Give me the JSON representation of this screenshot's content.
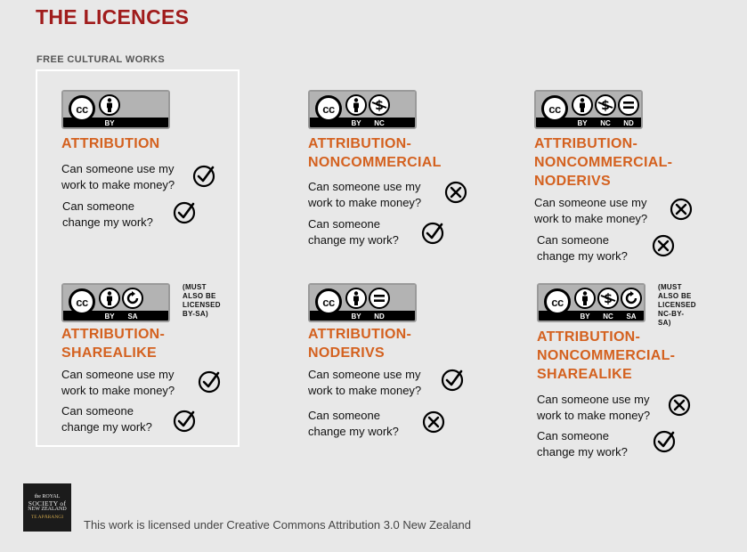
{
  "title": "THE LICENCES",
  "section_label": "FREE CULTURAL WORKS",
  "licences": [
    {
      "name_lines": [
        "ATTRIBUTION"
      ],
      "badge_labels": [
        "BY"
      ],
      "badge_icons": [
        "person-icon"
      ],
      "q1": [
        "Can someone use my",
        "work to make money?"
      ],
      "a1": "yes",
      "q2": [
        "Can someone",
        "change my work?"
      ],
      "a2": "yes",
      "note": []
    },
    {
      "name_lines": [
        "ATTRIBUTION-",
        "NONCOMMERCIAL"
      ],
      "badge_labels": [
        "BY",
        "NC"
      ],
      "badge_icons": [
        "person-icon",
        "no-dollar-icon"
      ],
      "q1": [
        "Can someone use my",
        "work to make money?"
      ],
      "a1": "no",
      "q2": [
        "Can someone",
        "change my work?"
      ],
      "a2": "yes",
      "note": []
    },
    {
      "name_lines": [
        "ATTRIBUTION-",
        "NONCOMMERCIAL-",
        "NODERIVS"
      ],
      "badge_labels": [
        "BY",
        "NC",
        "ND"
      ],
      "badge_icons": [
        "person-icon",
        "no-dollar-icon",
        "equals-icon"
      ],
      "q1": [
        "Can someone use my",
        "work to make money?"
      ],
      "a1": "no",
      "q2": [
        "Can someone",
        "change my work?"
      ],
      "a2": "no",
      "note": []
    },
    {
      "name_lines": [
        "ATTRIBUTION-",
        "SHAREALIKE"
      ],
      "badge_labels": [
        "BY",
        "SA"
      ],
      "badge_icons": [
        "person-icon",
        "sharealike-icon"
      ],
      "q1": [
        "Can someone use my",
        "work to make money?"
      ],
      "a1": "yes",
      "q2": [
        "Can someone",
        "change my work?"
      ],
      "a2": "yes",
      "note": [
        "(MUST",
        "ALSO BE",
        "LICENSED",
        "BY-SA)"
      ]
    },
    {
      "name_lines": [
        "ATTRIBUTION-",
        "NODERIVS"
      ],
      "badge_labels": [
        "BY",
        "ND"
      ],
      "badge_icons": [
        "person-icon",
        "equals-icon"
      ],
      "q1": [
        "Can someone use my",
        "work to make money?"
      ],
      "a1": "yes",
      "q2": [
        "Can someone",
        "change my work?"
      ],
      "a2": "no",
      "note": []
    },
    {
      "name_lines": [
        "ATTRIBUTION-",
        "NONCOMMERCIAL-",
        "SHAREALIKE"
      ],
      "badge_labels": [
        "BY",
        "NC",
        "SA"
      ],
      "badge_icons": [
        "person-icon",
        "no-dollar-icon",
        "sharealike-icon"
      ],
      "q1": [
        "Can someone use my",
        "work to make money?"
      ],
      "a1": "no",
      "q2": [
        "Can someone",
        "change my work?"
      ],
      "a2": "yes",
      "note": [
        "(MUST",
        "ALSO BE",
        "LICENSED",
        "NC-BY-SA)"
      ]
    }
  ],
  "cc_label": "cc",
  "logo_lines": [
    "the ROYAL",
    "SOCIETY of",
    "NEW ZEALAND",
    "TE APĀRANGI"
  ],
  "footer": "This work is licensed under Creative Commons Attribution 3.0 New Zealand",
  "colors": {
    "title": "#a01c1c",
    "licence_name": "#d4611f",
    "background": "#e8e8e8"
  }
}
